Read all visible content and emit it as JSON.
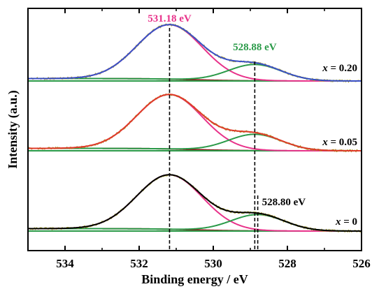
{
  "chart_data": {
    "type": "line",
    "xlabel": "Binding energy / eV",
    "ylabel": "Intensity (a.u.)",
    "xlim": [
      526,
      535
    ],
    "x_reversed": true,
    "x_ticks": [
      534,
      532,
      530,
      528,
      526
    ],
    "x_tick_labels": [
      "534",
      "532",
      "530",
      "528",
      "526"
    ],
    "y_ticks_shown": false,
    "grid": false,
    "colors": {
      "raw_data": "#a8a030",
      "peak_main": "#e8328a",
      "peak_shoulder": "#2a9a48",
      "background": "#8c1a1a"
    },
    "panels": [
      {
        "label_var": "x",
        "label_rest": " = 0.20",
        "envelope_color": "#3a50c8",
        "peak_main": {
          "center": 531.18,
          "amplitude": 1.0,
          "sigma": 0.88
        },
        "peak_shoulder": {
          "center": 528.88,
          "amplitude": 0.3,
          "sigma": 0.72
        },
        "annotations": [
          {
            "text": "531.18 eV",
            "x": 531.18,
            "color": "#e8328a"
          },
          {
            "text": "528.88 eV",
            "x": 528.88,
            "color": "#2a9a48"
          }
        ]
      },
      {
        "label_var": "x",
        "label_rest": " = 0.05",
        "envelope_color": "#e03a2a",
        "peak_main": {
          "center": 531.18,
          "amplitude": 1.0,
          "sigma": 0.88
        },
        "peak_shoulder": {
          "center": 528.88,
          "amplitude": 0.3,
          "sigma": 0.72
        },
        "annotations": []
      },
      {
        "label_var": "x",
        "label_rest": " = 0",
        "envelope_color": "#000000",
        "peak_main": {
          "center": 531.18,
          "amplitude": 1.0,
          "sigma": 0.88
        },
        "peak_shoulder": {
          "center": 528.8,
          "amplitude": 0.3,
          "sigma": 0.72
        },
        "annotations": [
          {
            "text": "528.80 eV",
            "x": 528.8,
            "color": "#000000"
          }
        ]
      }
    ],
    "reference_lines": [
      531.18,
      528.88,
      528.8
    ]
  }
}
